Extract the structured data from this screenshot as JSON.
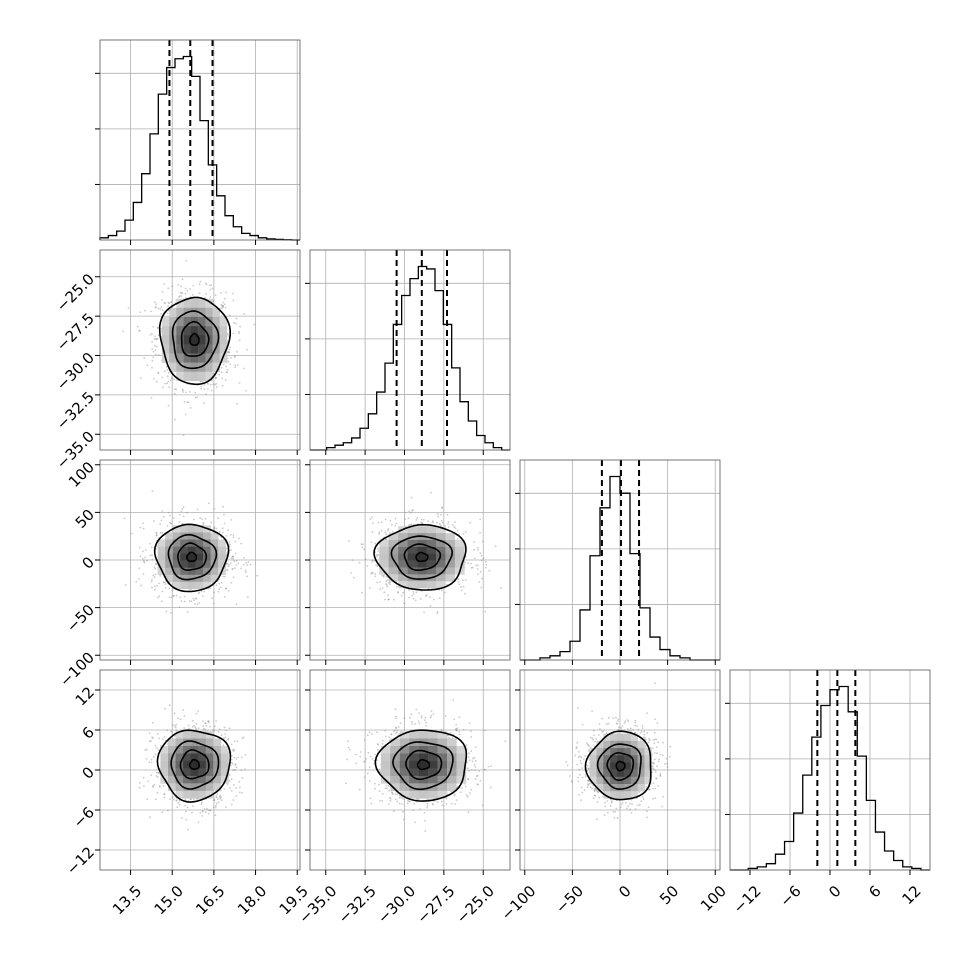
{
  "chart_data": {
    "type": "corner",
    "parameters": [
      {
        "range": [
          12.4,
          19.6
        ],
        "ticks": [
          13.5,
          15.0,
          16.5,
          18.0,
          19.5
        ],
        "tick_labels": [
          "13.5",
          "15.0",
          "16.5",
          "18.0",
          "19.5"
        ],
        "quantiles": [
          14.9,
          15.65,
          16.45
        ],
        "hist_counts": [
          1,
          2,
          4,
          9,
          17,
          30,
          48,
          66,
          78,
          82,
          83,
          74,
          54,
          34,
          20,
          11,
          6,
          3,
          2,
          1,
          0.5,
          0.3,
          0.1,
          0
        ]
      },
      {
        "range": [
          -36.0,
          -23.3
        ],
        "ticks": [
          -35.0,
          -32.5,
          -30.0,
          -27.5,
          -25.0
        ],
        "tick_labels": [
          "−35.0",
          "−32.5",
          "−30.0",
          "−27.5",
          "−25.0"
        ],
        "quantiles": [
          -30.5,
          -28.9,
          -27.3
        ],
        "hist_counts": [
          0,
          0,
          1,
          2,
          3,
          5,
          9,
          15,
          24,
          36,
          52,
          64,
          71,
          76,
          75,
          66,
          52,
          34,
          20,
          12,
          6,
          3,
          1,
          0
        ]
      },
      {
        "range": [
          -105,
          105
        ],
        "ticks": [
          -100,
          -50,
          0,
          50,
          100
        ],
        "tick_labels": [
          "−100",
          "−50",
          "0",
          "50",
          "100"
        ],
        "quantiles": [
          -19,
          1,
          20
        ],
        "hist_counts": [
          0,
          0,
          1,
          2,
          4,
          9,
          24,
          50,
          73,
          88,
          80,
          51,
          25,
          11,
          5,
          2,
          1,
          0,
          0,
          0
        ]
      },
      {
        "range": [
          -15,
          15
        ],
        "ticks": [
          -12,
          -6,
          0,
          6,
          12
        ],
        "tick_labels": [
          "−12",
          "−6",
          "0",
          "6",
          "12"
        ],
        "quantiles": [
          -1.9,
          1.1,
          3.8
        ],
        "hist_counts": [
          0,
          0,
          0.5,
          1,
          2,
          5,
          9,
          18,
          30,
          42,
          52,
          57,
          58,
          50,
          36,
          22,
          12,
          6,
          3,
          1,
          0.5,
          0
        ]
      }
    ],
    "pairs": [
      {
        "x": 0,
        "y": 1,
        "center": [
          15.8,
          -29.0
        ],
        "spread": [
          0.65,
          1.45
        ],
        "corr": -0.05
      },
      {
        "x": 0,
        "y": 2,
        "center": [
          15.7,
          3.0
        ],
        "spread": [
          0.68,
          18.5
        ],
        "corr": 0.0
      },
      {
        "x": 1,
        "y": 2,
        "center": [
          -28.9,
          3.0
        ],
        "spread": [
          1.5,
          18.0
        ],
        "corr": 0.0
      },
      {
        "x": 0,
        "y": 3,
        "center": [
          15.8,
          0.8
        ],
        "spread": [
          0.68,
          2.8
        ],
        "corr": 0.0
      },
      {
        "x": 1,
        "y": 3,
        "center": [
          -28.8,
          0.8
        ],
        "spread": [
          1.5,
          2.8
        ],
        "corr": 0.0
      },
      {
        "x": 2,
        "y": 3,
        "center": [
          0.5,
          0.6
        ],
        "spread": [
          18.0,
          2.7
        ],
        "corr": 0.05
      }
    ],
    "grid": true,
    "colors": {
      "lines": "#000000",
      "points": "#8c8c8c",
      "grid": "#b0b0b0"
    }
  }
}
